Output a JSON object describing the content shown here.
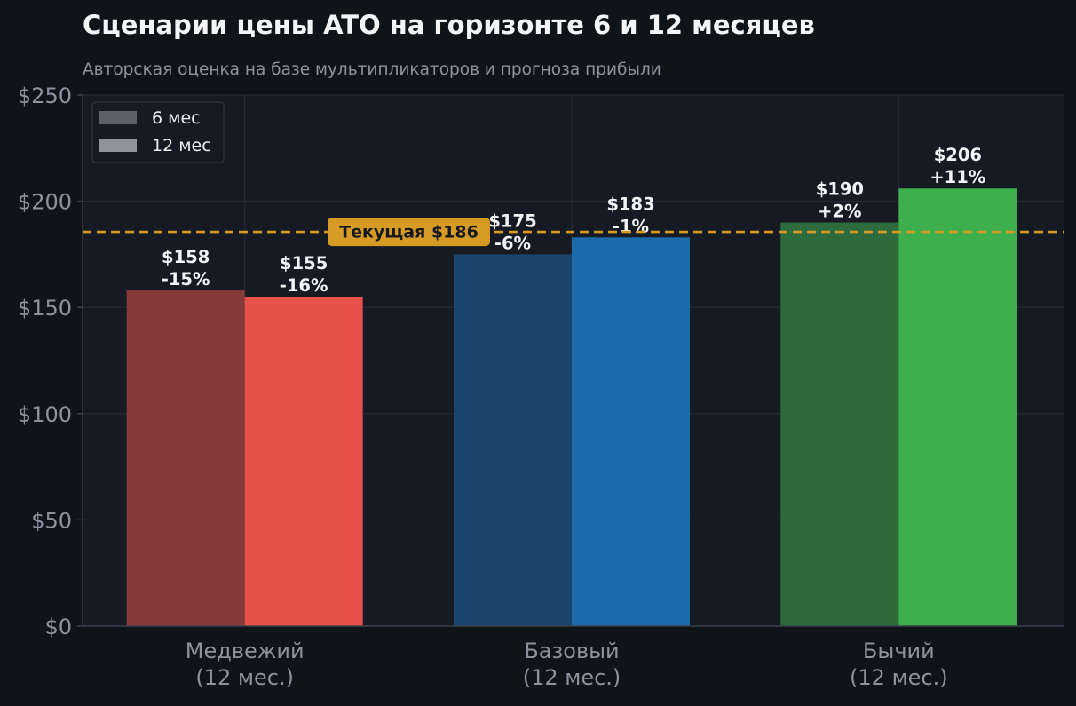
{
  "chart_data": {
    "type": "bar",
    "title": "Сценарии цены ATO на горизонте 6 и 12 месяцев",
    "subtitle": "Авторская оценка на базе мультипликаторов и прогноза прибыли",
    "categories": [
      "Медвежий\n(12 мес.)",
      "Базовый\n(12 мес.)",
      "Бычий\n(12 мес.)"
    ],
    "series": [
      {
        "name": "6 мес",
        "values": [
          158,
          175,
          190
        ],
        "labels": [
          "$158\n-15%",
          "$175\n-6%",
          "$190\n+2%"
        ],
        "colors": [
          "#863a3a",
          "#1b456c",
          "#2d6b3d"
        ]
      },
      {
        "name": "12 мес",
        "values": [
          155,
          183,
          206
        ],
        "labels": [
          "$155\n-16%",
          "$183\n-1%",
          "$206\n+11%"
        ],
        "colors": [
          "#e8504a",
          "#1d6aaa",
          "#3daf4d"
        ]
      }
    ],
    "yticks": [
      "$0",
      "$50",
      "$100",
      "$150",
      "$200",
      "$250"
    ],
    "ytick_values": [
      0,
      50,
      100,
      150,
      200,
      250
    ],
    "ylim": [
      0,
      250
    ],
    "grid": true,
    "legend_placement": "top-left",
    "legend_colors": [
      "#5c606b",
      "#8e949e"
    ],
    "reference_line": {
      "value": 186,
      "label": "Текущая $186",
      "color": "#d59b24"
    },
    "colors": {
      "background": "#0f1418",
      "plot_background": "#161a22",
      "grid": "#262c36",
      "tick_text": "#8c939d",
      "label_text": "#f2f3f5",
      "title_text": "#f2f4f6",
      "subtitle_text": "#8c939d"
    }
  }
}
